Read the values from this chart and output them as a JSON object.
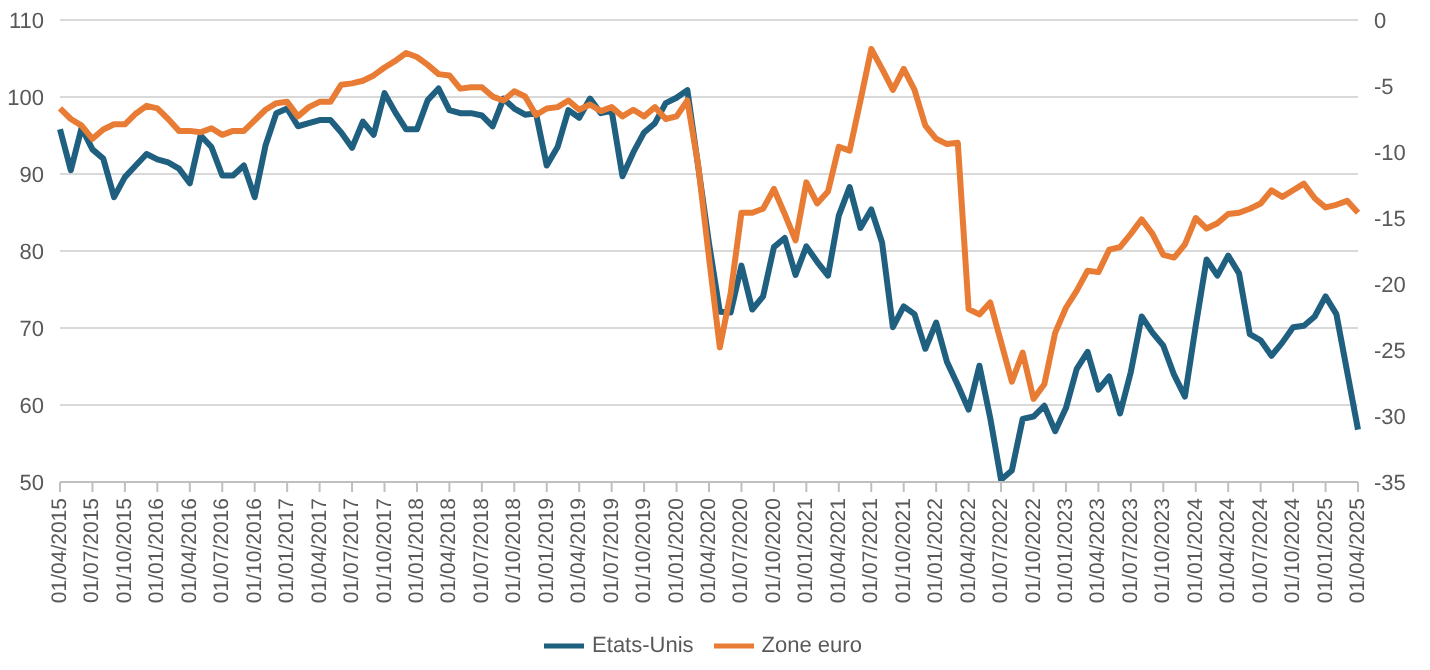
{
  "chart_data": {
    "type": "line",
    "categories": [
      "01/04/2015",
      null,
      null,
      "01/07/2015",
      null,
      null,
      "01/10/2015",
      null,
      null,
      "01/01/2016",
      null,
      null,
      "01/04/2016",
      null,
      null,
      "01/07/2016",
      null,
      null,
      "01/10/2016",
      null,
      null,
      "01/01/2017",
      null,
      null,
      "01/04/2017",
      null,
      null,
      "01/07/2017",
      null,
      null,
      "01/10/2017",
      null,
      null,
      "01/01/2018",
      null,
      null,
      "01/04/2018",
      null,
      null,
      "01/07/2018",
      null,
      null,
      "01/10/2018",
      null,
      null,
      "01/01/2019",
      null,
      null,
      "01/04/2019",
      null,
      null,
      "01/07/2019",
      null,
      null,
      "01/10/2019",
      null,
      null,
      "01/01/2020",
      null,
      null,
      "01/04/2020",
      null,
      null,
      "01/07/2020",
      null,
      null,
      "01/10/2020",
      null,
      null,
      "01/01/2021",
      null,
      null,
      "01/04/2021",
      null,
      null,
      "01/07/2021",
      null,
      null,
      "01/10/2021",
      null,
      null,
      "01/01/2022",
      null,
      null,
      "01/04/2022",
      null,
      null,
      "01/07/2022",
      null,
      null,
      "01/10/2022",
      null,
      null,
      "01/01/2023",
      null,
      null,
      "01/04/2023",
      null,
      null,
      "01/07/2023",
      null,
      null,
      "01/10/2023",
      null,
      null,
      "01/01/2024",
      null,
      null,
      "01/04/2024",
      null,
      null,
      "01/07/2024",
      null,
      null,
      "01/10/2024",
      null,
      null,
      "01/01/2025",
      null,
      null,
      "01/04/2025"
    ],
    "series": [
      {
        "name": "Etats-Unis",
        "color": "#1f5f7f",
        "values": [
          95.8,
          90.5,
          96,
          93.2,
          92,
          87,
          89.6,
          91.1,
          92.6,
          91.9,
          91.5,
          90.7,
          88.8,
          95,
          93.5,
          89.8,
          89.8,
          91.1,
          87,
          93.7,
          97.9,
          98.5,
          96.2,
          96.6,
          97,
          97,
          95.4,
          93.4,
          96.8,
          95.1,
          100.5,
          98,
          95.8,
          95.8,
          99.6,
          101.1,
          98.3,
          97.9,
          97.9,
          97.6,
          96.2,
          99.8,
          98.5,
          97.7,
          97.9,
          91.1,
          93.5,
          98.3,
          97.3,
          99.8,
          97.9,
          98.2,
          89.7,
          92.8,
          95.4,
          96.6,
          99.2,
          99.9,
          100.9,
          91,
          81,
          72.1,
          72,
          78.1,
          72.4,
          74.1,
          80.5,
          81.7,
          76.9,
          80.6,
          78.6,
          76.8,
          84.6,
          88.3,
          83,
          85.4,
          81.1,
          70.1,
          72.8,
          71.8,
          67.3,
          70.7,
          65.6,
          62.6,
          59.4,
          65.1,
          58.3,
          50.3,
          51.5,
          58.2,
          58.5,
          59.9,
          56.6,
          59.6,
          64.7,
          66.9,
          62,
          63.7,
          58.9,
          64.3,
          71.5,
          69.4,
          67.7,
          63.9,
          61.1,
          70.3,
          78.9,
          76.8,
          79.4,
          77.1,
          69.2,
          68.4,
          66.4,
          68.1,
          70.1,
          70.3,
          71.5,
          74.1,
          71.8,
          64.3,
          56.8
        ]
      },
      {
        "name": "Zone euro",
        "color": "#e97c34",
        "axis": "y2",
        "values": [
          -6.7,
          -7.5,
          -8,
          -9,
          -8.3,
          -7.9,
          -7.9,
          -7.1,
          -6.5,
          -6.7,
          -7.5,
          -8.4,
          -8.4,
          -8.5,
          -8.2,
          -8.7,
          -8.4,
          -8.4,
          -7.6,
          -6.8,
          -6.3,
          -6.2,
          -7.3,
          -6.6,
          -6.2,
          -6.2,
          -4.9,
          -4.8,
          -4.6,
          -4.2,
          -3.6,
          -3.1,
          -2.5,
          -2.8,
          -3.4,
          -4.1,
          -4.2,
          -5.2,
          -5.1,
          -5.1,
          -5.8,
          -6.1,
          -5.4,
          -5.8,
          -7.2,
          -6.7,
          -6.6,
          -6.1,
          -6.8,
          -6.4,
          -6.9,
          -6.6,
          -7.3,
          -6.8,
          -7.3,
          -6.6,
          -7.5,
          -7.3,
          -6.1,
          -11,
          -18,
          -24.8,
          -20.7,
          -14.6,
          -14.6,
          -14.3,
          -12.8,
          -14.7,
          -16.7,
          -12.3,
          -13.9,
          -13,
          -9.6,
          -9.9,
          -6.1,
          -2.2,
          -3.7,
          -5.3,
          -3.7,
          -5.3,
          -8,
          -9,
          -9.4,
          -9.3,
          -21.9,
          -22.3,
          -21.4,
          -24.4,
          -27.4,
          -25.2,
          -28.7,
          -27.6,
          -23.7,
          -21.8,
          -20.5,
          -19,
          -19.1,
          -17.4,
          -17.2,
          -16.2,
          -15.1,
          -16.2,
          -17.8,
          -18,
          -17,
          -15,
          -15.8,
          -15.4,
          -14.7,
          -14.6,
          -14.3,
          -13.9,
          -12.9,
          -13.4,
          -12.9,
          -12.4,
          -13.5,
          -14.2,
          -14,
          -13.7,
          -14.6
        ]
      }
    ],
    "ylim": [
      50,
      110
    ],
    "yticks": [
      50,
      60,
      70,
      80,
      90,
      100,
      110
    ],
    "y2lim": [
      -35,
      0
    ],
    "y2ticks": [
      -35,
      -30,
      -25,
      -20,
      -15,
      -10,
      -5,
      0
    ],
    "grid": "y",
    "legend": "bottom",
    "marker": "none",
    "line_style": "solid"
  }
}
